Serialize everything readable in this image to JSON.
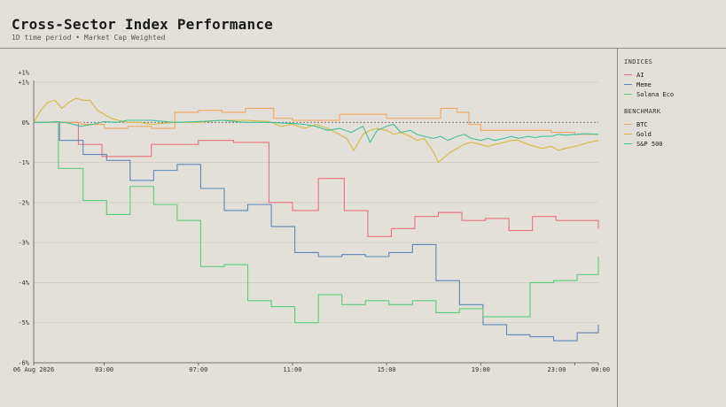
{
  "header": {
    "title": "Cross-Sector Index Performance",
    "subtitle": "1D time period • Market Cap Weighted"
  },
  "legend": {
    "indices_title": "INDICES",
    "benchmark_title": "BENCHMARK"
  },
  "colors": {
    "AI": "#e8707a",
    "Meme": "#5a86b8",
    "Solana Eco": "#5cc97a",
    "BTC": "#f0a860",
    "Gold": "#d9b83a",
    "S&P 500": "#3fbf9a",
    "grid": "#cfcbc3",
    "zero_line": "#555555"
  },
  "chart_data": {
    "type": "line",
    "title": "Cross-Sector Index Performance",
    "subtitle": "1D time period • Market Cap Weighted",
    "x_ticks": [
      "06 Aug 2026",
      "03:00",
      "07:00",
      "11:00",
      "15:00",
      "19:00",
      "23:00",
      "00:00"
    ],
    "x_tick_hours": [
      0,
      3,
      7,
      11,
      15,
      19,
      23,
      24
    ],
    "x_range_hours": [
      0,
      24
    ],
    "y_ticks": [
      "+1%",
      "+1%",
      "0%",
      "-1%",
      "-2%",
      "-3%",
      "-4%",
      "-5%",
      "-6%"
    ],
    "y_tick_values": [
      1,
      1,
      0,
      -1,
      -2,
      -3,
      -4,
      -5,
      -6
    ],
    "ylim": [
      -6,
      1
    ],
    "grid": true,
    "legend_position": "right",
    "series": [
      {
        "name": "AI",
        "group": "INDICES",
        "style": "step",
        "points": [
          [
            0,
            0
          ],
          [
            1,
            0
          ],
          [
            1.9,
            -0.55
          ],
          [
            2.9,
            -0.85
          ],
          [
            4.9,
            -0.85
          ],
          [
            5,
            -0.55
          ],
          [
            6,
            -0.55
          ],
          [
            7,
            -0.45
          ],
          [
            8.5,
            -0.5
          ],
          [
            9.8,
            -0.5
          ],
          [
            10,
            -2
          ],
          [
            11,
            -2.2
          ],
          [
            12,
            -2.2
          ],
          [
            12.1,
            -1.4
          ],
          [
            13,
            -1.4
          ],
          [
            13.2,
            -2.2
          ],
          [
            14,
            -2.2
          ],
          [
            14.2,
            -2.85
          ],
          [
            15,
            -2.85
          ],
          [
            15.2,
            -2.65
          ],
          [
            16,
            -2.65
          ],
          [
            16.2,
            -2.35
          ],
          [
            17,
            -2.35
          ],
          [
            17.2,
            -2.25
          ],
          [
            18,
            -2.25
          ],
          [
            18.2,
            -2.45
          ],
          [
            19,
            -2.45
          ],
          [
            19.2,
            -2.4
          ],
          [
            20,
            -2.4
          ],
          [
            20.2,
            -2.7
          ],
          [
            21,
            -2.7
          ],
          [
            21.2,
            -2.35
          ],
          [
            22,
            -2.35
          ],
          [
            22.2,
            -2.45
          ],
          [
            23.9,
            -2.45
          ],
          [
            24,
            -2.65
          ]
        ]
      },
      {
        "name": "Meme",
        "group": "INDICES",
        "style": "step",
        "points": [
          [
            0,
            0
          ],
          [
            1,
            0
          ],
          [
            1.1,
            -0.45
          ],
          [
            2,
            -0.45
          ],
          [
            2.1,
            -0.8
          ],
          [
            3,
            -0.8
          ],
          [
            3.1,
            -0.95
          ],
          [
            4,
            -0.95
          ],
          [
            4.1,
            -1.45
          ],
          [
            5,
            -1.45
          ],
          [
            5.1,
            -1.2
          ],
          [
            6,
            -1.2
          ],
          [
            6.1,
            -1.05
          ],
          [
            7,
            -1.05
          ],
          [
            7.1,
            -1.65
          ],
          [
            8,
            -1.65
          ],
          [
            8.1,
            -2.2
          ],
          [
            9,
            -2.2
          ],
          [
            9.1,
            -2.05
          ],
          [
            10,
            -2.05
          ],
          [
            10.1,
            -2.6
          ],
          [
            11,
            -2.6
          ],
          [
            11.1,
            -3.25
          ],
          [
            12,
            -3.25
          ],
          [
            12.1,
            -3.35
          ],
          [
            13,
            -3.35
          ],
          [
            13.1,
            -3.3
          ],
          [
            14,
            -3.3
          ],
          [
            14.1,
            -3.35
          ],
          [
            15,
            -3.35
          ],
          [
            15.1,
            -3.25
          ],
          [
            16,
            -3.25
          ],
          [
            16.1,
            -3.05
          ],
          [
            17,
            -3.05
          ],
          [
            17.1,
            -3.95
          ],
          [
            18,
            -3.95
          ],
          [
            18.1,
            -4.55
          ],
          [
            19,
            -4.55
          ],
          [
            19.1,
            -5.05
          ],
          [
            20,
            -5.05
          ],
          [
            20.1,
            -5.3
          ],
          [
            21,
            -5.3
          ],
          [
            21.1,
            -5.35
          ],
          [
            22,
            -5.35
          ],
          [
            22.1,
            -5.45
          ],
          [
            23,
            -5.45
          ],
          [
            23.1,
            -5.25
          ],
          [
            23.9,
            -5.25
          ],
          [
            24,
            -5.05
          ]
        ]
      },
      {
        "name": "Solana Eco",
        "group": "INDICES",
        "style": "step",
        "points": [
          [
            0,
            0
          ],
          [
            1,
            0
          ],
          [
            1.05,
            -1.15
          ],
          [
            2,
            -1.15
          ],
          [
            2.1,
            -1.95
          ],
          [
            3,
            -1.95
          ],
          [
            3.1,
            -2.3
          ],
          [
            4,
            -2.3
          ],
          [
            4.1,
            -1.6
          ],
          [
            5,
            -1.6
          ],
          [
            5.1,
            -2.05
          ],
          [
            6,
            -2.05
          ],
          [
            6.1,
            -2.45
          ],
          [
            7,
            -2.45
          ],
          [
            7.1,
            -3.6
          ],
          [
            8,
            -3.6
          ],
          [
            8.1,
            -3.55
          ],
          [
            9,
            -3.55
          ],
          [
            9.1,
            -4.45
          ],
          [
            10,
            -4.45
          ],
          [
            10.1,
            -4.6
          ],
          [
            11,
            -4.6
          ],
          [
            11.1,
            -5.0
          ],
          [
            12,
            -5.0
          ],
          [
            12.1,
            -4.3
          ],
          [
            13,
            -4.3
          ],
          [
            13.1,
            -4.55
          ],
          [
            14,
            -4.55
          ],
          [
            14.1,
            -4.45
          ],
          [
            15,
            -4.45
          ],
          [
            15.1,
            -4.55
          ],
          [
            16,
            -4.55
          ],
          [
            16.1,
            -4.45
          ],
          [
            17,
            -4.45
          ],
          [
            17.1,
            -4.75
          ],
          [
            18,
            -4.75
          ],
          [
            18.1,
            -4.65
          ],
          [
            19,
            -4.65
          ],
          [
            19.1,
            -4.85
          ],
          [
            20,
            -4.85
          ],
          [
            20.1,
            -4.85
          ],
          [
            21,
            -4.85
          ],
          [
            21.1,
            -4.0
          ],
          [
            22,
            -4.0
          ],
          [
            22.1,
            -3.95
          ],
          [
            23,
            -3.95
          ],
          [
            23.1,
            -3.8
          ],
          [
            23.9,
            -3.8
          ],
          [
            24,
            -3.35
          ]
        ]
      },
      {
        "name": "BTC",
        "group": "BENCHMARK",
        "style": "step",
        "points": [
          [
            0,
            0
          ],
          [
            2,
            -0.05
          ],
          [
            3,
            -0.15
          ],
          [
            4,
            -0.1
          ],
          [
            5,
            -0.15
          ],
          [
            6,
            0.25
          ],
          [
            7,
            0.3
          ],
          [
            8,
            0.25
          ],
          [
            9,
            0.35
          ],
          [
            10,
            0.35
          ],
          [
            10.2,
            0.1
          ],
          [
            11,
            0.05
          ],
          [
            12,
            0.05
          ],
          [
            13,
            0.2
          ],
          [
            14,
            0.2
          ],
          [
            15,
            0.1
          ],
          [
            16,
            0.1
          ],
          [
            17,
            0.1
          ],
          [
            17.3,
            0.35
          ],
          [
            18,
            0.25
          ],
          [
            18.5,
            -0.05
          ],
          [
            19,
            -0.2
          ],
          [
            20,
            -0.2
          ],
          [
            21,
            -0.2
          ],
          [
            22,
            -0.25
          ],
          [
            23,
            -0.3
          ],
          [
            24,
            -0.3
          ]
        ]
      },
      {
        "name": "Gold",
        "group": "BENCHMARK",
        "style": "smooth",
        "points": [
          [
            0,
            0
          ],
          [
            0.3,
            0.3
          ],
          [
            0.6,
            0.5
          ],
          [
            0.9,
            0.55
          ],
          [
            1.2,
            0.35
          ],
          [
            1.5,
            0.5
          ],
          [
            1.8,
            0.6
          ],
          [
            2.1,
            0.55
          ],
          [
            2.4,
            0.55
          ],
          [
            2.7,
            0.3
          ],
          [
            3,
            0.2
          ],
          [
            3.3,
            0.1
          ],
          [
            3.6,
            0.05
          ],
          [
            4,
            0
          ],
          [
            4.5,
            0
          ],
          [
            5,
            -0.05
          ],
          [
            6,
            0
          ],
          [
            7,
            0
          ],
          [
            8,
            0.05
          ],
          [
            9,
            0.05
          ],
          [
            10,
            0.02
          ],
          [
            10.5,
            -0.1
          ],
          [
            11,
            -0.05
          ],
          [
            11.5,
            -0.15
          ],
          [
            12,
            -0.05
          ],
          [
            12.5,
            -0.15
          ],
          [
            13,
            -0.3
          ],
          [
            13.3,
            -0.4
          ],
          [
            13.6,
            -0.7
          ],
          [
            14,
            -0.3
          ],
          [
            14.3,
            -0.2
          ],
          [
            14.6,
            -0.15
          ],
          [
            15,
            -0.2
          ],
          [
            15.3,
            -0.3
          ],
          [
            15.6,
            -0.25
          ],
          [
            16,
            -0.35
          ],
          [
            16.3,
            -0.45
          ],
          [
            16.6,
            -0.4
          ],
          [
            17,
            -0.75
          ],
          [
            17.2,
            -1.0
          ],
          [
            17.4,
            -0.9
          ],
          [
            17.7,
            -0.75
          ],
          [
            18,
            -0.65
          ],
          [
            18.3,
            -0.55
          ],
          [
            18.6,
            -0.5
          ],
          [
            19,
            -0.55
          ],
          [
            19.3,
            -0.6
          ],
          [
            19.6,
            -0.55
          ],
          [
            20,
            -0.5
          ],
          [
            20.3,
            -0.45
          ],
          [
            20.6,
            -0.45
          ],
          [
            21,
            -0.55
          ],
          [
            21.3,
            -0.6
          ],
          [
            21.6,
            -0.65
          ],
          [
            22,
            -0.6
          ],
          [
            22.3,
            -0.7
          ],
          [
            22.6,
            -0.65
          ],
          [
            23,
            -0.6
          ],
          [
            23.3,
            -0.55
          ],
          [
            23.6,
            -0.5
          ],
          [
            24,
            -0.45
          ]
        ]
      },
      {
        "name": "S&P 500",
        "group": "BENCHMARK",
        "style": "smooth",
        "points": [
          [
            0,
            0
          ],
          [
            0.5,
            0
          ],
          [
            1,
            0.02
          ],
          [
            1.5,
            -0.02
          ],
          [
            2,
            -0.1
          ],
          [
            2.5,
            -0.05
          ],
          [
            3,
            0.02
          ],
          [
            3.5,
            0
          ],
          [
            4,
            0.05
          ],
          [
            5,
            0.05
          ],
          [
            6,
            0
          ],
          [
            7,
            0.02
          ],
          [
            8,
            0.05
          ],
          [
            9,
            0
          ],
          [
            10,
            0
          ],
          [
            11,
            -0.03
          ],
          [
            11.5,
            -0.05
          ],
          [
            12,
            -0.1
          ],
          [
            12.5,
            -0.2
          ],
          [
            13,
            -0.15
          ],
          [
            13.5,
            -0.25
          ],
          [
            14,
            -0.1
          ],
          [
            14.3,
            -0.5
          ],
          [
            14.6,
            -0.2
          ],
          [
            15,
            -0.1
          ],
          [
            15.3,
            -0.05
          ],
          [
            15.6,
            -0.25
          ],
          [
            16,
            -0.2
          ],
          [
            16.3,
            -0.3
          ],
          [
            16.6,
            -0.35
          ],
          [
            17,
            -0.4
          ],
          [
            17.3,
            -0.35
          ],
          [
            17.6,
            -0.45
          ],
          [
            18,
            -0.35
          ],
          [
            18.3,
            -0.3
          ],
          [
            18.6,
            -0.4
          ],
          [
            19,
            -0.45
          ],
          [
            19.3,
            -0.4
          ],
          [
            19.6,
            -0.45
          ],
          [
            20,
            -0.4
          ],
          [
            20.3,
            -0.35
          ],
          [
            20.6,
            -0.4
          ],
          [
            21,
            -0.35
          ],
          [
            21.3,
            -0.38
          ],
          [
            21.6,
            -0.35
          ],
          [
            22,
            -0.35
          ],
          [
            22.3,
            -0.3
          ],
          [
            22.6,
            -0.32
          ],
          [
            23,
            -0.3
          ],
          [
            23.5,
            -0.28
          ],
          [
            24,
            -0.3
          ]
        ]
      }
    ]
  }
}
